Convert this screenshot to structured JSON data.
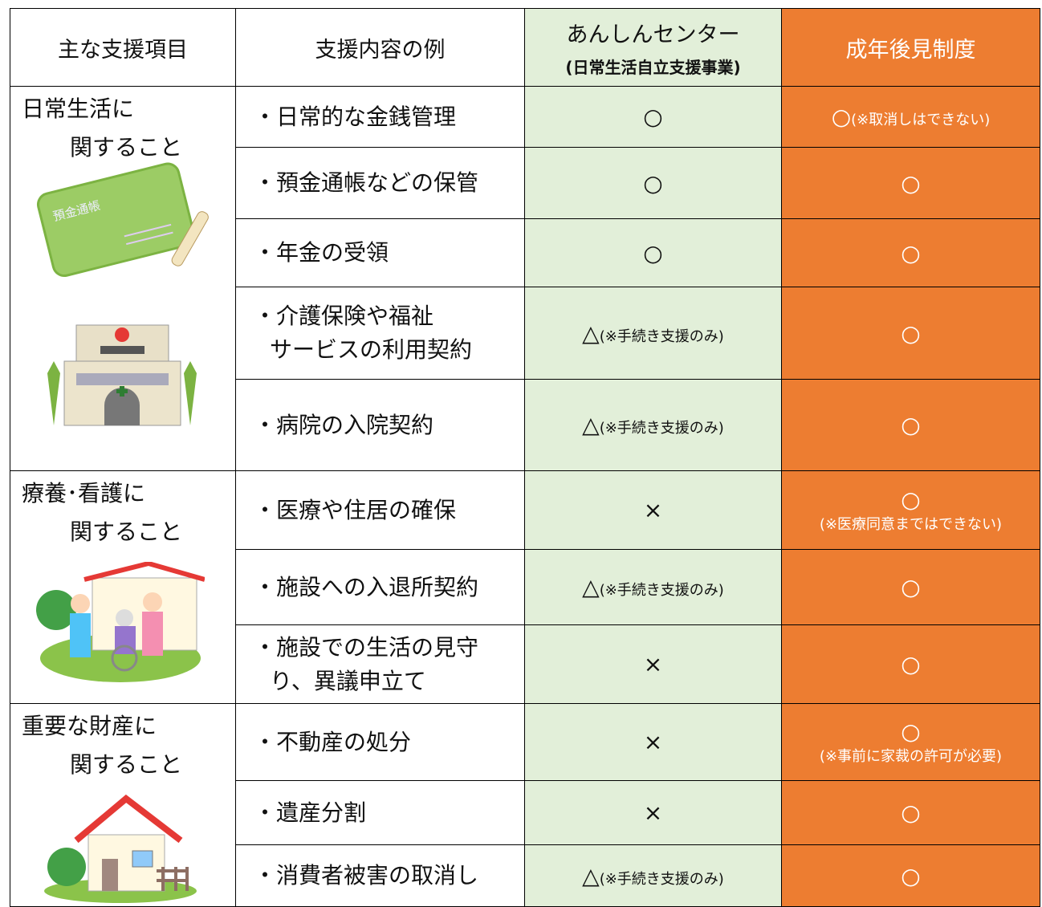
{
  "header": {
    "col1": "主な支援項目",
    "col2": "支援内容の例",
    "col3": {
      "title": "あんしんセンター",
      "subtitle": "(日常生活自立支援事業)"
    },
    "col4": "成年後見制度"
  },
  "groups": [
    {
      "label": [
        "日常生活に",
        "関すること"
      ],
      "rows": [
        {
          "item": [
            "・日常的な金銭管理"
          ],
          "anshin": {
            "mark": "○"
          },
          "kouken": {
            "mark": "○",
            "note": "(※取消しはできない)"
          }
        },
        {
          "item": [
            "・預金通帳などの保管"
          ],
          "anshin": {
            "mark": "○"
          },
          "kouken": {
            "mark": "○"
          }
        },
        {
          "item": [
            "・年金の受領"
          ],
          "anshin": {
            "mark": "○"
          },
          "kouken": {
            "mark": "○"
          }
        },
        {
          "item": [
            "・介護保険や福祉",
            "サービスの利用契約"
          ],
          "anshin": {
            "mark": "△",
            "note": "(※手続き支援のみ)"
          },
          "kouken": {
            "mark": "○"
          }
        },
        {
          "item": [
            "・病院の入院契約"
          ],
          "anshin": {
            "mark": "△",
            "note": "(※手続き支援のみ)"
          },
          "kouken": {
            "mark": "○"
          }
        }
      ],
      "picture_text": "預金通帳"
    },
    {
      "label": [
        "療養･看護に",
        "関すること"
      ],
      "rows": [
        {
          "item": [
            "・医療や住居の確保"
          ],
          "anshin": {
            "mark": "×"
          },
          "kouken": {
            "mark": "○",
            "note": "(※医療同意まではできない)"
          }
        },
        {
          "item": [
            "・施設への入退所契約"
          ],
          "anshin": {
            "mark": "△",
            "note": "(※手続き支援のみ)"
          },
          "kouken": {
            "mark": "○"
          }
        },
        {
          "item": [
            "・施設での生活の見守",
            "り、異議申立て"
          ],
          "anshin": {
            "mark": "×"
          },
          "kouken": {
            "mark": "○"
          }
        }
      ]
    },
    {
      "label": [
        "重要な財産に",
        "関すること"
      ],
      "rows": [
        {
          "item": [
            "・不動産の処分"
          ],
          "anshin": {
            "mark": "×"
          },
          "kouken": {
            "mark": "○",
            "note": "(※事前に家裁の許可が必要)"
          }
        },
        {
          "item": [
            "・遺産分割"
          ],
          "anshin": {
            "mark": "×"
          },
          "kouken": {
            "mark": "○"
          }
        },
        {
          "item": [
            "・消費者被害の取消し"
          ],
          "anshin": {
            "mark": "△",
            "note": "(※手続き支援のみ)"
          },
          "kouken": {
            "mark": "○"
          }
        }
      ]
    }
  ]
}
